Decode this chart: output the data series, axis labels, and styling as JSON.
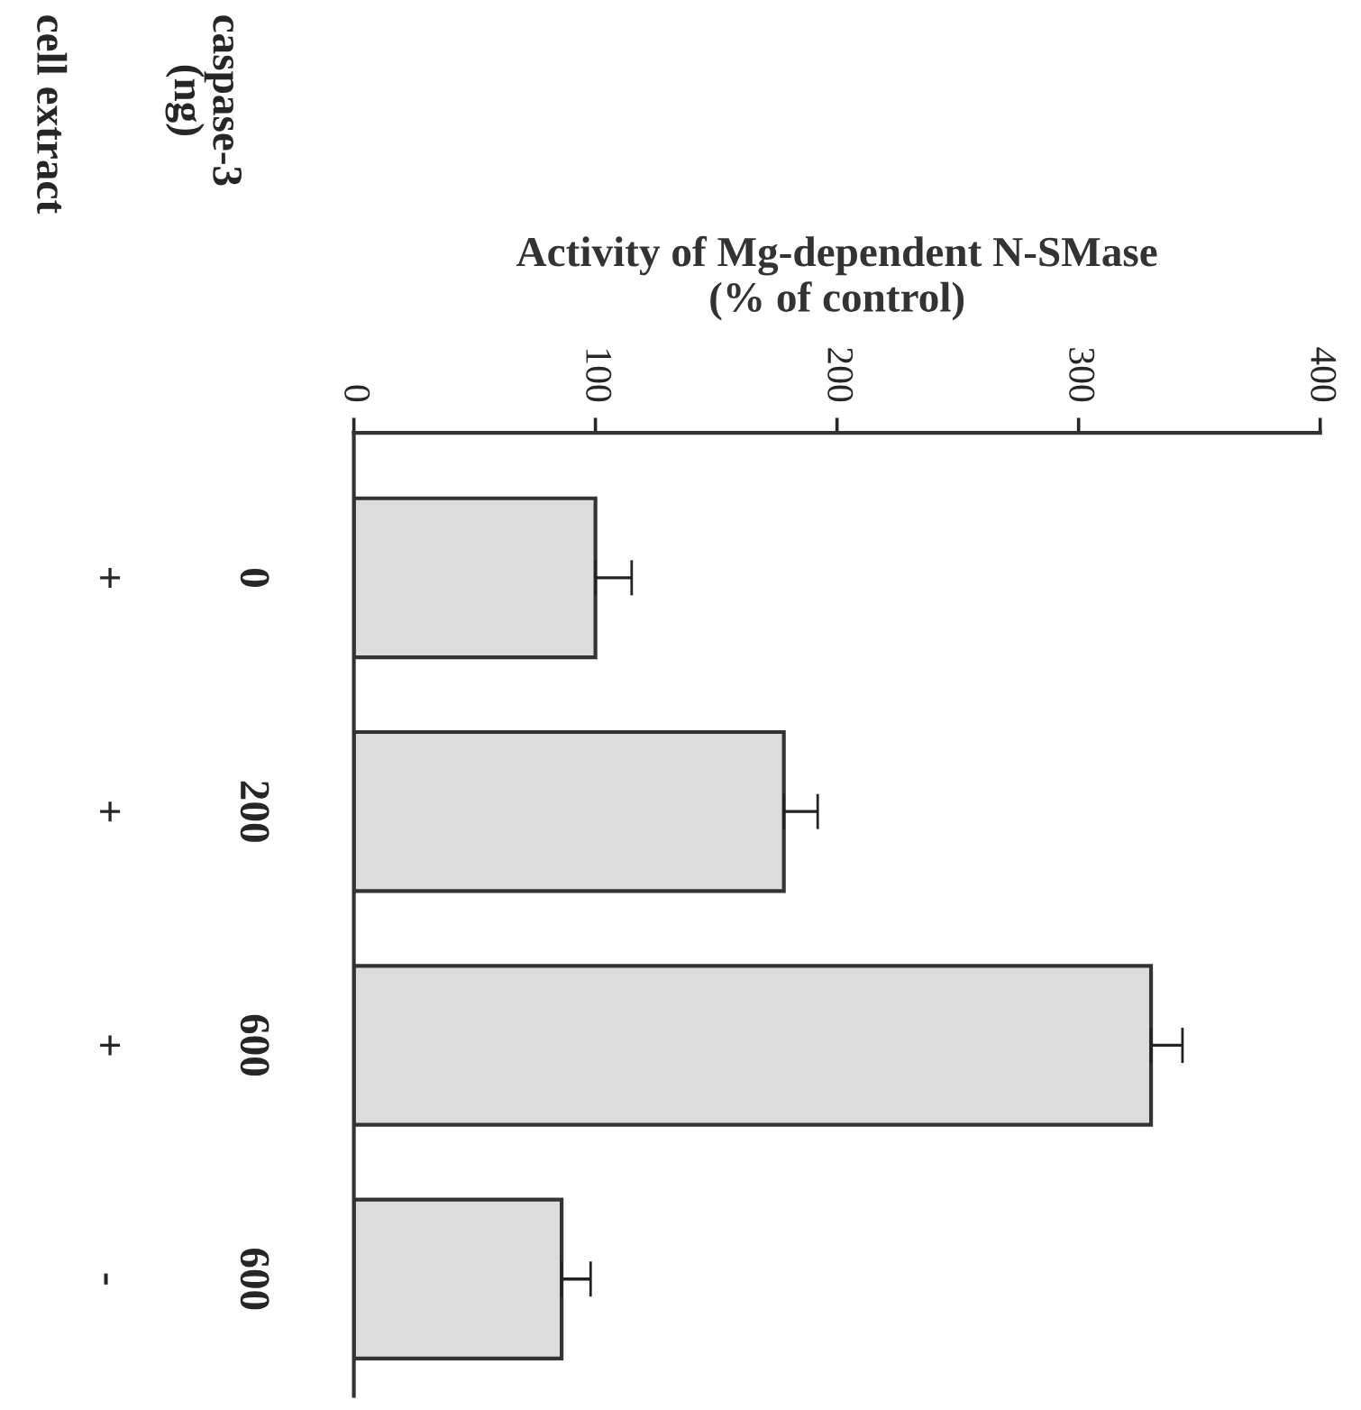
{
  "chart_data": {
    "type": "bar",
    "orientation": "horizontal",
    "xlabel": "Activity of Mg-dependent N-SMase\n(% of control)",
    "categories": [
      "0\n+",
      "200\n+",
      "600\n+",
      "600\n-"
    ],
    "values": [
      100,
      178,
      330,
      86
    ],
    "errors": [
      [
        100,
        115
      ],
      [
        178,
        192
      ],
      [
        330,
        343
      ],
      [
        86,
        98
      ]
    ],
    "color": "#dcdcdc",
    "xlim": [
      0,
      400
    ],
    "xticks": [
      0,
      100,
      200,
      300,
      400
    ],
    "annotations": [
      "caspase-3\n(ng)",
      "cell extract"
    ],
    "grid": false,
    "legend": false
  }
}
